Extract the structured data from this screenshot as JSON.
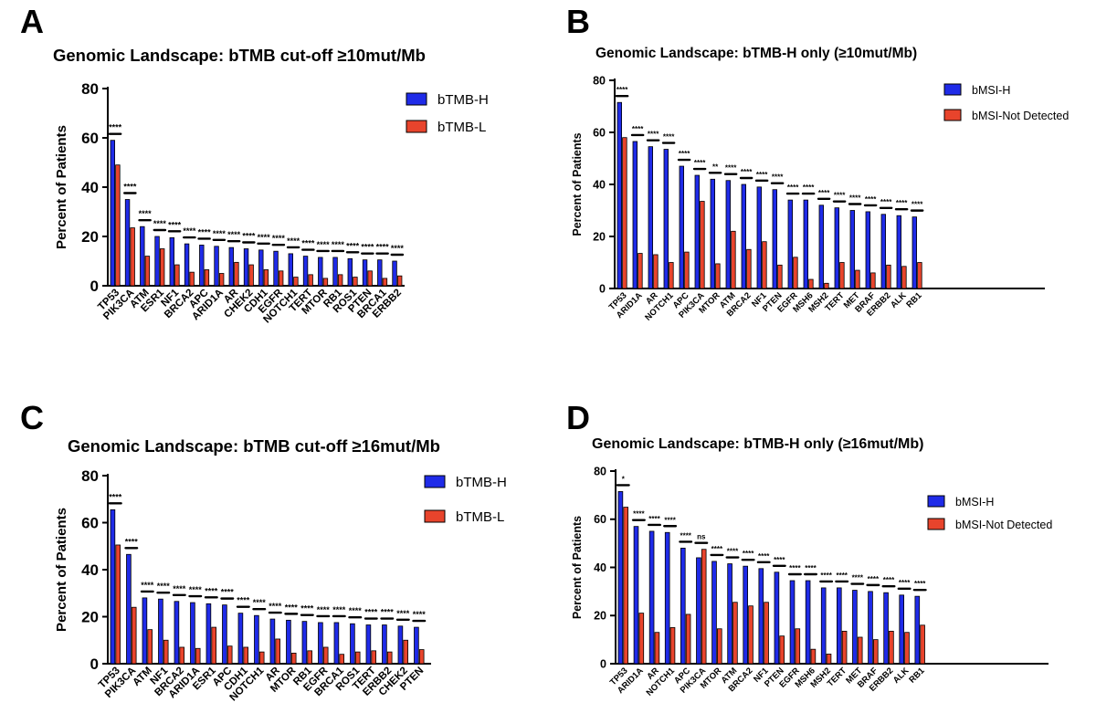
{
  "colors": {
    "series_a": "#1f2be8",
    "series_b": "#e8442c",
    "stroke": "#000000"
  },
  "chart_data": [
    {
      "panel": "A",
      "type": "bar",
      "title": "Genomic Landscape: bTMB cut-off ≥10mut/Mb",
      "ylabel": "Percent of Patients",
      "ylim": [
        0,
        80
      ],
      "yticks": [
        0,
        20,
        40,
        60,
        80
      ],
      "legend_position": "top-right",
      "categories": [
        "TP53",
        "PIK3CA",
        "ATM",
        "ESR1",
        "NF1",
        "BRCA2",
        "APC",
        "ARID1A",
        "AR",
        "CHEK2",
        "CDH1",
        "EGFR",
        "NOTCH1",
        "TERT",
        "MTOR",
        "RB1",
        "ROS1",
        "PTEN",
        "BRCA1",
        "ERBB2"
      ],
      "series": [
        {
          "name": "bTMB-H",
          "values": [
            59,
            35,
            24,
            20,
            19.5,
            17,
            16.5,
            16,
            15.5,
            15,
            14.5,
            14,
            13,
            12,
            11.5,
            11.5,
            11,
            10.5,
            10.5,
            10
          ]
        },
        {
          "name": "bTMB-L",
          "values": [
            49,
            23.5,
            12,
            15,
            8.5,
            5.5,
            6.5,
            5,
            9.5,
            8.5,
            6.5,
            6,
            3.5,
            4.5,
            3,
            4.5,
            3.5,
            6,
            3,
            4
          ]
        }
      ],
      "significance": [
        "****",
        "****",
        "****",
        "****",
        "****",
        "****",
        "****",
        "****",
        "****",
        "****",
        "****",
        "****",
        "****",
        "****",
        "****",
        "****",
        "****",
        "****",
        "****",
        "****"
      ]
    },
    {
      "panel": "B",
      "type": "bar",
      "title": "Genomic Landscape: bTMB-H only (≥10mut/Mb)",
      "ylabel": "Percent of Patients",
      "ylim": [
        0,
        80
      ],
      "yticks": [
        0,
        20,
        40,
        60,
        80
      ],
      "legend_position": "top-right",
      "categories": [
        "TP53",
        "ARID1A",
        "AR",
        "NOTCH1",
        "APC",
        "PIK3CA",
        "MTOR",
        "ATM",
        "BRCA2",
        "NF1",
        "PTEN",
        "EGFR",
        "MSH6",
        "MSH2",
        "TERT",
        "MET",
        "BRAF",
        "ERBB2",
        "ALK",
        "RB1"
      ],
      "series": [
        {
          "name": "bMSI-H",
          "values": [
            71.5,
            56.5,
            54.5,
            53.5,
            47,
            43.5,
            42,
            41.5,
            40,
            39,
            38,
            34,
            34,
            32,
            31,
            30,
            29.5,
            28.5,
            28,
            27.5
          ]
        },
        {
          "name": "bMSI-Not Detected",
          "values": [
            58,
            13.5,
            13,
            10,
            14,
            33.5,
            9.5,
            22,
            15,
            18,
            9,
            12,
            3.5,
            2,
            10,
            7,
            6,
            9,
            8.5,
            10
          ]
        }
      ],
      "significance": [
        "****",
        "****",
        "****",
        "****",
        "****",
        "****",
        "**",
        "****",
        "****",
        "****",
        "****",
        "****",
        "****",
        "****",
        "****",
        "****",
        "****",
        "****",
        "****",
        "****"
      ]
    },
    {
      "panel": "C",
      "type": "bar",
      "title": "Genomic Landscape: bTMB cut-off ≥16mut/Mb",
      "ylabel": "Percent of Patients",
      "ylim": [
        0,
        80
      ],
      "yticks": [
        0,
        20,
        40,
        60,
        80
      ],
      "legend_position": "top-right",
      "categories": [
        "TP53",
        "PIK3CA",
        "ATM",
        "NF1",
        "BRCA2",
        "ARID1A",
        "ESR1",
        "APC",
        "CDH1",
        "NOTCH1",
        "AR",
        "MTOR",
        "RB1",
        "EGFR",
        "BRCA1",
        "ROS1",
        "TERT",
        "ERBB2",
        "CHEK2",
        "PTEN"
      ],
      "series": [
        {
          "name": "bTMB-H",
          "values": [
            65.5,
            46.5,
            28,
            27.5,
            26.5,
            26,
            25.5,
            25,
            21.5,
            20.5,
            19,
            18.5,
            18,
            17.5,
            17.5,
            17,
            16.5,
            16.5,
            16,
            15.5
          ]
        },
        {
          "name": "bTMB-L",
          "values": [
            50.5,
            24,
            14.5,
            10,
            7,
            6.5,
            15.5,
            7.5,
            7,
            5,
            10.5,
            4.5,
            5.5,
            7,
            4,
            5,
            5.5,
            5,
            10,
            6
          ]
        }
      ],
      "significance": [
        "****",
        "****",
        "****",
        "****",
        "****",
        "****",
        "****",
        "****",
        "****",
        "****",
        "****",
        "****",
        "****",
        "****",
        "****",
        "****",
        "****",
        "****",
        "****",
        "****"
      ]
    },
    {
      "panel": "D",
      "type": "bar",
      "title": "Genomic Landscape: bTMB-H only (≥16mut/Mb)",
      "ylabel": "Percent of Patients",
      "ylim": [
        0,
        80
      ],
      "yticks": [
        0,
        20,
        40,
        60,
        80
      ],
      "legend_position": "top-right",
      "categories": [
        "TP53",
        "ARID1A",
        "AR",
        "NOTCH1",
        "APC",
        "PIK3CA",
        "MTOR",
        "ATM",
        "BRCA2",
        "NF1",
        "PTEN",
        "EGFR",
        "MSH6",
        "MSH2",
        "TERT",
        "MET",
        "BRAF",
        "ERBB2",
        "ALK",
        "RB1"
      ],
      "series": [
        {
          "name": "bMSI-H",
          "values": [
            71.5,
            57,
            55,
            54.5,
            48,
            44,
            42.5,
            41.5,
            40.5,
            39.5,
            38,
            34.5,
            34.5,
            31.5,
            31.5,
            30.5,
            30,
            29.5,
            28.5,
            28
          ]
        },
        {
          "name": "bMSI-Not Detected",
          "values": [
            65,
            21,
            13,
            15,
            20.5,
            47.5,
            14.5,
            25.5,
            24,
            25.5,
            11.5,
            14.5,
            6,
            4,
            13.5,
            11,
            10,
            13.5,
            13,
            16
          ]
        }
      ],
      "significance": [
        "*",
        "****",
        "****",
        "****",
        "****",
        "ns",
        "****",
        "****",
        "****",
        "****",
        "****",
        "****",
        "****",
        "****",
        "****",
        "****",
        "****",
        "****",
        "****",
        "****"
      ]
    }
  ]
}
